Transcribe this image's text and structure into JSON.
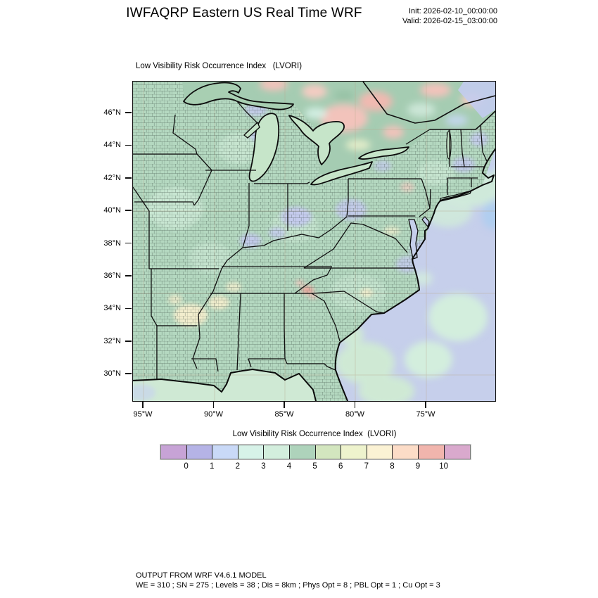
{
  "header": {
    "title": "IWFAQRP Eastern US Real Time WRF",
    "init": "Init: 2026-02-10_00:00:00",
    "valid": "Valid: 2026-02-15_03:00:00"
  },
  "map": {
    "title": "Low Visibility Risk Occurrence Index   (LVORI)",
    "lat_labels": [
      "46°N",
      "44°N",
      "42°N",
      "40°N",
      "38°N",
      "36°N",
      "34°N",
      "32°N",
      "30°N"
    ],
    "lon_labels": [
      "95°W",
      "90°W",
      "85°W",
      "80°W",
      "75°W"
    ]
  },
  "colorbar": {
    "title": "Low Visibility Risk Occurrence Index  (LVORI)",
    "tick_labels": [
      "0",
      "1",
      "2",
      "3",
      "4",
      "5",
      "6",
      "7",
      "8",
      "9",
      "10"
    ],
    "colors": [
      "#c7a3d6",
      "#b5b3e6",
      "#c9d9f7",
      "#d7f2e8",
      "#d3eedd",
      "#aed3bb",
      "#d3e6bf",
      "#eef3cd",
      "#fbf2d4",
      "#fcdcc7",
      "#f1b5ad",
      "#d9a9cd"
    ]
  },
  "footer": {
    "line1": "OUTPUT FROM WRF V4.6.1 MODEL",
    "line2": "WE = 310 ; SN = 275 ; Levels = 38 ; Dis = 8km ; Phys Opt = 8 ; PBL Opt = 1 ; Cu Opt = 3"
  },
  "chart_data": {
    "type": "heatmap",
    "title": "Low Visibility Risk Occurrence Index (LVORI)",
    "x_ticks": [
      "95°W",
      "90°W",
      "85°W",
      "80°W",
      "75°W"
    ],
    "y_ticks": [
      "46°N",
      "44°N",
      "42°N",
      "40°N",
      "38°N",
      "36°N",
      "34°N",
      "32°N",
      "30°N"
    ],
    "colorbar_values": [
      0,
      1,
      2,
      3,
      4,
      5,
      6,
      7,
      8,
      9,
      10
    ],
    "colorbar_colors": [
      "#c7a3d6",
      "#b5b3e6",
      "#c9d9f7",
      "#d7f2e8",
      "#d3eedd",
      "#aed3bb",
      "#d3e6bf",
      "#eef3cd",
      "#fbf2d4",
      "#fcdcc7",
      "#f1b5ad",
      "#d9a9cd"
    ],
    "legend_position": "bottom"
  }
}
